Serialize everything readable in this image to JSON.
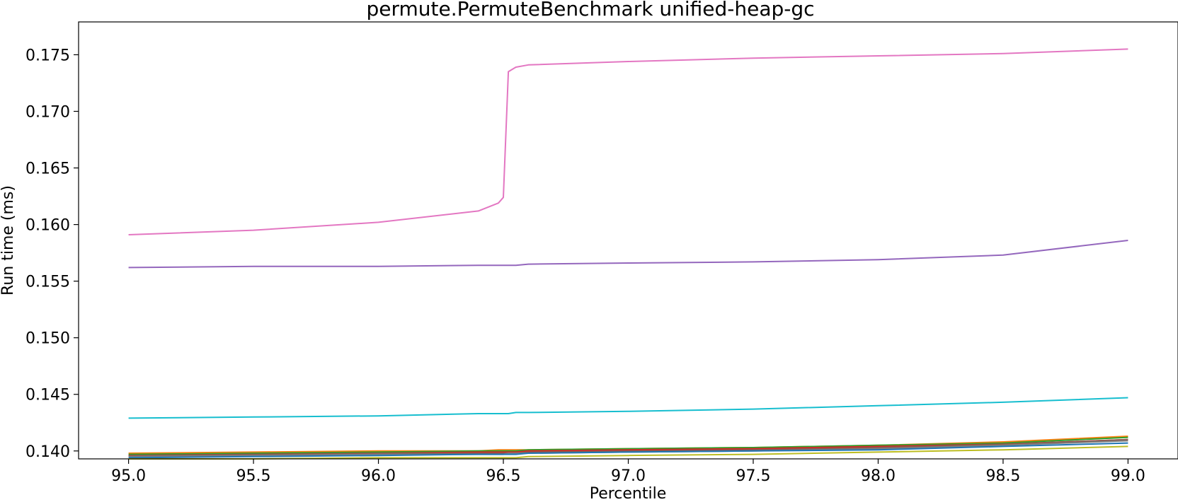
{
  "chart_data": {
    "type": "line",
    "title": "permute.PermuteBenchmark unified-heap-gc",
    "xlabel": "Percentile",
    "ylabel": "Run time (ms)",
    "xlim": [
      94.8,
      99.2
    ],
    "ylim": [
      0.1393,
      0.1779
    ],
    "xticks": [
      "95.0",
      "95.5",
      "96.0",
      "96.5",
      "97.0",
      "97.5",
      "98.0",
      "98.5",
      "99.0"
    ],
    "yticks": [
      "0.140",
      "0.145",
      "0.150",
      "0.155",
      "0.160",
      "0.165",
      "0.170",
      "0.175"
    ],
    "grid": false,
    "legend": "none",
    "x": [
      95.0,
      95.5,
      96.0,
      96.4,
      96.48,
      96.5,
      96.52,
      96.55,
      96.6,
      97.0,
      97.5,
      98.0,
      98.5,
      99.0
    ],
    "series": [
      {
        "color": "#e377c2",
        "values": [
          0.1591,
          0.1595,
          0.1602,
          0.1612,
          0.1619,
          0.1624,
          0.1735,
          0.1739,
          0.1741,
          0.1744,
          0.1747,
          0.1749,
          0.1751,
          0.1755
        ]
      },
      {
        "color": "#9467bd",
        "values": [
          0.1562,
          0.1563,
          0.1563,
          0.1564,
          0.1564,
          0.1564,
          0.1564,
          0.1564,
          0.1565,
          0.1566,
          0.1567,
          0.1569,
          0.1573,
          0.1586
        ]
      },
      {
        "color": "#17becf",
        "values": [
          0.1429,
          0.143,
          0.1431,
          0.1433,
          0.1433,
          0.1433,
          0.1433,
          0.1434,
          0.1434,
          0.1435,
          0.1437,
          0.144,
          0.1443,
          0.1447
        ]
      },
      {
        "color": "#ff7f0e",
        "values": [
          0.1398,
          0.1399,
          0.14,
          0.14,
          0.1401,
          0.1401,
          0.1401,
          0.1401,
          0.1401,
          0.1402,
          0.1403,
          0.1405,
          0.1408,
          0.1413
        ]
      },
      {
        "color": "#2ca02c",
        "values": [
          0.1397,
          0.1398,
          0.1399,
          0.14,
          0.14,
          0.14,
          0.14,
          0.14,
          0.1401,
          0.1402,
          0.1403,
          0.1405,
          0.1407,
          0.1412
        ]
      },
      {
        "color": "#d62728",
        "values": [
          0.1396,
          0.1397,
          0.1398,
          0.1399,
          0.1399,
          0.1399,
          0.1399,
          0.1399,
          0.14,
          0.1401,
          0.1402,
          0.1404,
          0.1406,
          0.141
        ]
      },
      {
        "color": "#8c564b",
        "values": [
          0.1396,
          0.1397,
          0.1398,
          0.1398,
          0.1398,
          0.1398,
          0.1398,
          0.1398,
          0.1399,
          0.14,
          0.1401,
          0.1403,
          0.1406,
          0.141
        ]
      },
      {
        "color": "#7f7f7f",
        "values": [
          0.1395,
          0.1396,
          0.1397,
          0.1397,
          0.1397,
          0.1397,
          0.1398,
          0.1398,
          0.1398,
          0.1399,
          0.14,
          0.1402,
          0.1405,
          0.1409
        ]
      },
      {
        "color": "#1f77b4",
        "values": [
          0.1394,
          0.1395,
          0.1396,
          0.1397,
          0.1397,
          0.1397,
          0.1397,
          0.1397,
          0.1398,
          0.1399,
          0.14,
          0.1401,
          0.1404,
          0.1407
        ]
      },
      {
        "color": "#bcbd22",
        "values": [
          0.1393,
          0.1393,
          0.1394,
          0.1394,
          0.1394,
          0.1394,
          0.1394,
          0.1394,
          0.1395,
          0.1396,
          0.1397,
          0.1399,
          0.1401,
          0.1404
        ]
      }
    ]
  }
}
